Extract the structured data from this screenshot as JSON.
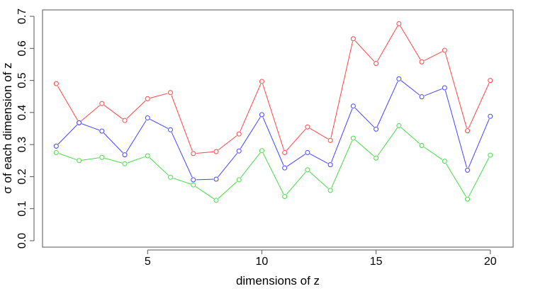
{
  "chart_data": {
    "type": "line",
    "title": "",
    "xlabel": "dimensions of z",
    "ylabel": "σ of each dimension of z",
    "x": [
      1,
      2,
      3,
      4,
      5,
      6,
      7,
      8,
      9,
      10,
      11,
      12,
      13,
      14,
      15,
      16,
      17,
      18,
      19,
      20
    ],
    "xlim": [
      0.4,
      21.0
    ],
    "ylim": [
      -0.02,
      0.72
    ],
    "xticks": [
      5,
      10,
      15,
      20
    ],
    "yticks": [
      0.0,
      0.1,
      0.2,
      0.3,
      0.4,
      0.5,
      0.6,
      0.7
    ],
    "ytick_labels": [
      "0.0",
      "0.1",
      "0.2",
      "0.3",
      "0.4",
      "0.5",
      "0.6",
      "0.7"
    ],
    "xtick_labels": [
      "5",
      "10",
      "15",
      "20"
    ],
    "grid": false,
    "legend": "none",
    "series": [
      {
        "color": "#ff4444",
        "values": [
          0.49,
          0.368,
          0.428,
          0.375,
          0.443,
          0.462,
          0.272,
          0.278,
          0.333,
          0.497,
          0.275,
          0.355,
          0.313,
          0.63,
          0.553,
          0.677,
          0.558,
          0.594,
          0.343,
          0.5
        ]
      },
      {
        "color": "#4444ff",
        "values": [
          0.295,
          0.368,
          0.342,
          0.268,
          0.383,
          0.346,
          0.19,
          0.192,
          0.28,
          0.393,
          0.227,
          0.275,
          0.237,
          0.42,
          0.348,
          0.505,
          0.449,
          0.477,
          0.22,
          0.388
        ]
      },
      {
        "color": "#44dd44",
        "values": [
          0.275,
          0.25,
          0.26,
          0.24,
          0.265,
          0.198,
          0.174,
          0.126,
          0.19,
          0.281,
          0.138,
          0.221,
          0.157,
          0.32,
          0.258,
          0.359,
          0.297,
          0.248,
          0.13,
          0.267
        ]
      }
    ]
  }
}
